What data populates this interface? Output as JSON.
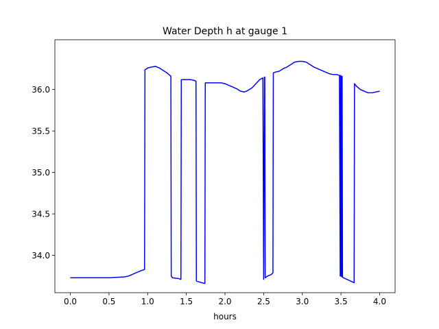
{
  "chart_data": {
    "type": "line",
    "title": "Water Depth h at gauge 1",
    "xlabel": "hours",
    "ylabel": "",
    "xlim": [
      -0.2,
      4.2
    ],
    "ylim": [
      33.55,
      36.6
    ],
    "grid": false,
    "xticks": [
      0.0,
      0.5,
      1.0,
      1.5,
      2.0,
      2.5,
      3.0,
      3.5,
      4.0
    ],
    "xtick_labels": [
      "0.0",
      "0.5",
      "1.0",
      "1.5",
      "2.0",
      "2.5",
      "3.0",
      "3.5",
      "4.0"
    ],
    "yticks": [
      34.0,
      34.5,
      35.0,
      35.5,
      36.0
    ],
    "ytick_labels": [
      "34.0",
      "34.5",
      "35.0",
      "35.5",
      "36.0"
    ],
    "series": [
      {
        "color": "#0000ff",
        "x": [
          0.0,
          0.5,
          0.6,
          0.7,
          0.75,
          0.8,
          0.85,
          0.9,
          0.96,
          0.965,
          0.99,
          1.0,
          1.05,
          1.1,
          1.15,
          1.2,
          1.25,
          1.3,
          1.305,
          1.32,
          1.4,
          1.43,
          1.435,
          1.45,
          1.5,
          1.55,
          1.6,
          1.625,
          1.63,
          1.7,
          1.74,
          1.745,
          1.8,
          1.85,
          1.9,
          1.95,
          2.0,
          2.05,
          2.1,
          2.15,
          2.2,
          2.25,
          2.3,
          2.35,
          2.4,
          2.45,
          2.49,
          2.5,
          2.51,
          2.515,
          2.52,
          2.55,
          2.6,
          2.62,
          2.625,
          2.65,
          2.7,
          2.75,
          2.8,
          2.85,
          2.9,
          2.95,
          3.0,
          3.05,
          3.1,
          3.15,
          3.2,
          3.25,
          3.3,
          3.35,
          3.4,
          3.45,
          3.48,
          3.49,
          3.495,
          3.5,
          3.505,
          3.51,
          3.515,
          3.52,
          3.53,
          3.6,
          3.67,
          3.675,
          3.7,
          3.75,
          3.8,
          3.85,
          3.9,
          3.95,
          4.0
        ],
        "y": [
          33.73,
          33.73,
          33.735,
          33.74,
          33.75,
          33.77,
          33.79,
          33.81,
          33.83,
          36.24,
          36.25,
          36.26,
          36.27,
          36.28,
          36.26,
          36.23,
          36.2,
          36.16,
          33.75,
          33.73,
          33.72,
          33.71,
          36.12,
          36.12,
          36.12,
          36.12,
          36.11,
          36.1,
          33.69,
          33.67,
          33.66,
          36.08,
          36.08,
          36.08,
          36.08,
          36.08,
          36.07,
          36.05,
          36.03,
          36.01,
          35.98,
          35.97,
          35.99,
          36.02,
          36.07,
          36.12,
          36.14,
          33.71,
          36.15,
          36.15,
          33.73,
          33.75,
          33.77,
          33.79,
          36.2,
          36.21,
          36.22,
          36.25,
          36.27,
          36.3,
          36.33,
          36.34,
          36.34,
          36.33,
          36.3,
          36.27,
          36.25,
          36.23,
          36.21,
          36.19,
          36.18,
          36.18,
          36.17,
          33.75,
          36.17,
          33.75,
          36.16,
          33.74,
          36.16,
          33.74,
          33.73,
          33.7,
          33.67,
          36.07,
          36.04,
          36.0,
          35.98,
          35.96,
          35.96,
          35.97,
          35.98
        ]
      }
    ]
  }
}
